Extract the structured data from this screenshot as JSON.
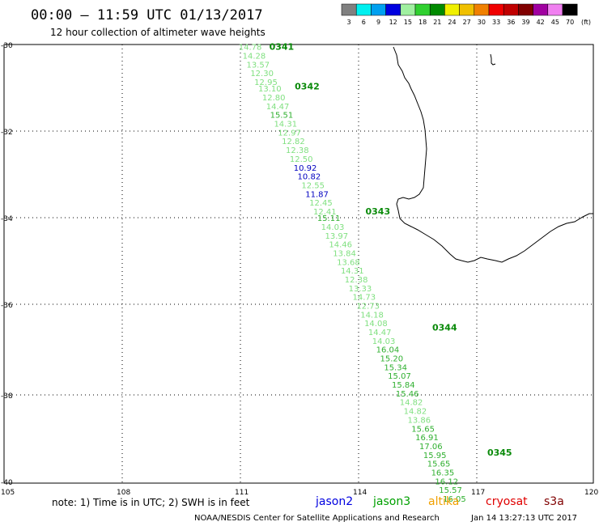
{
  "header": {
    "title": "00:00 — 11:59 UTC 01/13/2017",
    "subtitle": "12 hour collection of altimeter wave heights"
  },
  "legend": {
    "unit": "(ft)",
    "colors": [
      "#808080",
      "#00f0f0",
      "#00a0f0",
      "#0000e0",
      "#a0f0a0",
      "#30d030",
      "#008a00",
      "#f0f000",
      "#f0c000",
      "#f08000",
      "#f00000",
      "#c00000",
      "#800000",
      "#a000a0",
      "#f080f0",
      "#000000"
    ],
    "labels": [
      "3",
      "6",
      "9",
      "12",
      "15",
      "18",
      "21",
      "24",
      "27",
      "30",
      "33",
      "36",
      "39",
      "42",
      "45",
      "70"
    ]
  },
  "map": {
    "lat_labels": [
      "-30",
      "-32",
      "-34",
      "-36",
      "-38",
      "-40"
    ],
    "lon_labels": [
      "105",
      "108",
      "111",
      "114",
      "117",
      "120"
    ]
  },
  "chart_data": {
    "type": "scatter",
    "x_axis": "longitude",
    "y_axis": "latitude",
    "xlim": [
      105,
      120
    ],
    "ylim": [
      -40,
      -30
    ],
    "pass_labels": [
      {
        "text": "0341",
        "lon": 111.75,
        "lat": -30.05
      },
      {
        "text": "0342",
        "lon": 112.4,
        "lat": -30.95
      },
      {
        "text": "0343",
        "lon": 114.2,
        "lat": -33.8
      },
      {
        "text": "0344",
        "lon": 115.9,
        "lat": -36.45
      },
      {
        "text": "0345",
        "lon": 117.3,
        "lat": -39.3
      }
    ],
    "points": [
      {
        "v": "14.78",
        "lon": 111.3,
        "lat": -30.05,
        "c": "#80e080"
      },
      {
        "v": "14.28",
        "lon": 111.4,
        "lat": -30.25,
        "c": "#80e080"
      },
      {
        "v": "13.57",
        "lon": 111.5,
        "lat": -30.45,
        "c": "#80e080"
      },
      {
        "v": "12.30",
        "lon": 111.6,
        "lat": -30.65,
        "c": "#80e080"
      },
      {
        "v": "12.95",
        "lon": 111.7,
        "lat": -30.85,
        "c": "#80e080"
      },
      {
        "v": "13.10",
        "lon": 111.8,
        "lat": -31.0,
        "c": "#80e080"
      },
      {
        "v": "12.80",
        "lon": 111.9,
        "lat": -31.2,
        "c": "#80e080"
      },
      {
        "v": "14.47",
        "lon": 112.0,
        "lat": -31.4,
        "c": "#80e080"
      },
      {
        "v": "15.51",
        "lon": 112.1,
        "lat": -31.6,
        "c": "#30b030"
      },
      {
        "v": "14.31",
        "lon": 112.2,
        "lat": -31.8,
        "c": "#80e080"
      },
      {
        "v": "12.97",
        "lon": 112.3,
        "lat": -32.0,
        "c": "#80e080"
      },
      {
        "v": "12.82",
        "lon": 112.4,
        "lat": -32.2,
        "c": "#80e080"
      },
      {
        "v": "12.38",
        "lon": 112.5,
        "lat": -32.4,
        "c": "#80e080"
      },
      {
        "v": "12.50",
        "lon": 112.6,
        "lat": -32.6,
        "c": "#80e080"
      },
      {
        "v": "10.92",
        "lon": 112.7,
        "lat": -32.8,
        "c": "#0000c0"
      },
      {
        "v": "10.82",
        "lon": 112.8,
        "lat": -33.0,
        "c": "#0000c0"
      },
      {
        "v": "12.55",
        "lon": 112.9,
        "lat": -33.2,
        "c": "#80e080"
      },
      {
        "v": "11.87",
        "lon": 113.0,
        "lat": -33.4,
        "c": "#0000c0"
      },
      {
        "v": "12.45",
        "lon": 113.1,
        "lat": -33.6,
        "c": "#80e080"
      },
      {
        "v": "12.41",
        "lon": 113.2,
        "lat": -33.8,
        "c": "#80e080"
      },
      {
        "v": "15.11",
        "lon": 113.3,
        "lat": -33.95,
        "c": "#30b030"
      },
      {
        "v": "14.03",
        "lon": 113.4,
        "lat": -34.15,
        "c": "#80e080"
      },
      {
        "v": "13.97",
        "lon": 113.5,
        "lat": -34.35,
        "c": "#80e080"
      },
      {
        "v": "14.46",
        "lon": 113.6,
        "lat": -34.55,
        "c": "#80e080"
      },
      {
        "v": "13.84",
        "lon": 113.7,
        "lat": -34.75,
        "c": "#80e080"
      },
      {
        "v": "13.68",
        "lon": 113.8,
        "lat": -34.95,
        "c": "#80e080"
      },
      {
        "v": "14.31",
        "lon": 113.9,
        "lat": -35.15,
        "c": "#80e080"
      },
      {
        "v": "12.38",
        "lon": 114.0,
        "lat": -35.35,
        "c": "#80e080"
      },
      {
        "v": "13.33",
        "lon": 114.1,
        "lat": -35.55,
        "c": "#80e080"
      },
      {
        "v": "14.73",
        "lon": 114.2,
        "lat": -35.75,
        "c": "#80e080"
      },
      {
        "v": "12.73",
        "lon": 114.3,
        "lat": -35.95,
        "c": "#80e080"
      },
      {
        "v": "14.18",
        "lon": 114.4,
        "lat": -36.15,
        "c": "#80e080"
      },
      {
        "v": "14.08",
        "lon": 114.5,
        "lat": -36.35,
        "c": "#80e080"
      },
      {
        "v": "14.47",
        "lon": 114.6,
        "lat": -36.55,
        "c": "#80e080"
      },
      {
        "v": "14.03",
        "lon": 114.7,
        "lat": -36.75,
        "c": "#80e080"
      },
      {
        "v": "16.04",
        "lon": 114.8,
        "lat": -36.95,
        "c": "#30b030"
      },
      {
        "v": "15.20",
        "lon": 114.9,
        "lat": -37.15,
        "c": "#30b030"
      },
      {
        "v": "15.34",
        "lon": 115.0,
        "lat": -37.35,
        "c": "#30b030"
      },
      {
        "v": "15.07",
        "lon": 115.1,
        "lat": -37.55,
        "c": "#30b030"
      },
      {
        "v": "15.84",
        "lon": 115.2,
        "lat": -37.75,
        "c": "#30b030"
      },
      {
        "v": "15.46",
        "lon": 115.3,
        "lat": -37.95,
        "c": "#30b030"
      },
      {
        "v": "14.82",
        "lon": 115.4,
        "lat": -38.15,
        "c": "#80e080"
      },
      {
        "v": "14.82",
        "lon": 115.5,
        "lat": -38.35,
        "c": "#80e080"
      },
      {
        "v": "13.86",
        "lon": 115.6,
        "lat": -38.55,
        "c": "#80e080"
      },
      {
        "v": "15.65",
        "lon": 115.7,
        "lat": -38.75,
        "c": "#30b030"
      },
      {
        "v": "16.91",
        "lon": 115.8,
        "lat": -38.95,
        "c": "#30b030"
      },
      {
        "v": "17.06",
        "lon": 115.9,
        "lat": -39.15,
        "c": "#30b030"
      },
      {
        "v": "15.95",
        "lon": 116.0,
        "lat": -39.35,
        "c": "#30b030"
      },
      {
        "v": "15.65",
        "lon": 116.1,
        "lat": -39.55,
        "c": "#30b030"
      },
      {
        "v": "16.35",
        "lon": 116.2,
        "lat": -39.75,
        "c": "#30b030"
      },
      {
        "v": "16.12",
        "lon": 116.3,
        "lat": -39.95,
        "c": "#30b030"
      },
      {
        "v": "15.57",
        "lon": 116.4,
        "lat": -40.15,
        "c": "#30b030"
      },
      {
        "v": "16.05",
        "lon": 116.5,
        "lat": -40.35,
        "c": "#30b030"
      }
    ]
  },
  "footer": {
    "note": "note: 1) Time is in UTC; 2) SWH is in feet",
    "satellites": [
      {
        "name": "jason2",
        "color": "#0000e0"
      },
      {
        "name": "jason3",
        "color": "#00a000"
      },
      {
        "name": "altika",
        "color": "#f0a000"
      },
      {
        "name": "cryosat",
        "color": "#e00000"
      },
      {
        "name": "s3a",
        "color": "#800000"
      }
    ],
    "credit": "NOAA/NESDIS Center for Satellite Applications and Research",
    "timestamp": "Jan 14 13:27:13 UTC 2017"
  }
}
